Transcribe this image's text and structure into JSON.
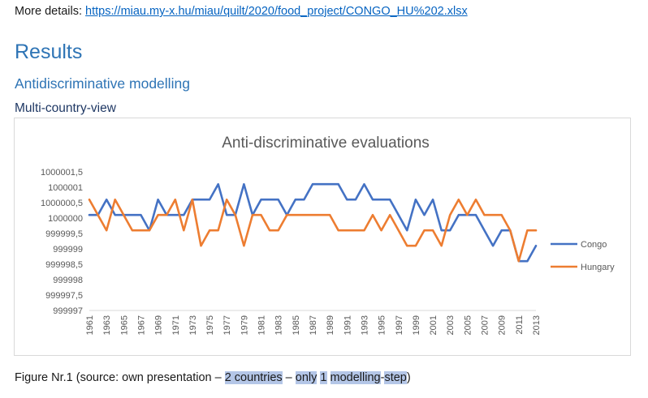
{
  "details": {
    "label": "More details: ",
    "link_text": "https://miau.my-x.hu/miau/quilt/2020/food_project/CONGO_HU%202.xlsx"
  },
  "headings": {
    "results": "Results",
    "modelling": "Antidiscriminative modelling",
    "view": "Multi-country-view"
  },
  "chart_data": {
    "type": "line",
    "title": "Anti-discriminative evaluations",
    "x": [
      1961,
      1962,
      1963,
      1964,
      1965,
      1966,
      1967,
      1968,
      1969,
      1970,
      1971,
      1972,
      1973,
      1974,
      1975,
      1976,
      1977,
      1978,
      1979,
      1980,
      1981,
      1982,
      1983,
      1984,
      1985,
      1986,
      1987,
      1988,
      1989,
      1990,
      1991,
      1992,
      1993,
      1994,
      1995,
      1996,
      1997,
      1998,
      1999,
      2000,
      2001,
      2002,
      2003,
      2004,
      2005,
      2006,
      2007,
      2008,
      2009,
      2010,
      2011,
      2012,
      2013
    ],
    "x_tick_labels": [
      "1961",
      "1963",
      "1965",
      "1967",
      "1969",
      "1971",
      "1973",
      "1975",
      "1977",
      "1979",
      "1981",
      "1983",
      "1985",
      "1987",
      "1989",
      "1991",
      "1993",
      "1995",
      "1997",
      "1999",
      "2001",
      "2003",
      "2005",
      "2007",
      "2009",
      "2011",
      "2013"
    ],
    "y_tick_labels": [
      "1000001,5",
      "1000001",
      "1000000,5",
      "1000000",
      "999999,5",
      "999999",
      "999998,5",
      "999998",
      "999997,5",
      "999997"
    ],
    "ylim": [
      999997,
      1000001.5
    ],
    "ytick_step": 0.5,
    "grid": false,
    "legend_position": "right",
    "series": [
      {
        "name": "Congo",
        "color": "#4472c4",
        "values": [
          1000000.1,
          1000000.1,
          1000000.6,
          1000000.1,
          1000000.1,
          1000000.1,
          1000000.1,
          999999.6,
          1000000.6,
          1000000.1,
          1000000.1,
          1000000.1,
          1000000.6,
          1000000.6,
          1000000.6,
          1000001.1,
          1000000.1,
          1000000.1,
          1000001.1,
          1000000.1,
          1000000.6,
          1000000.6,
          1000000.6,
          1000000.1,
          1000000.6,
          1000000.6,
          1000001.1,
          1000001.1,
          1000001.1,
          1000001.1,
          1000000.6,
          1000000.6,
          1000001.1,
          1000000.6,
          1000000.6,
          1000000.6,
          1000000.1,
          999999.6,
          1000000.6,
          1000000.1,
          1000000.6,
          999999.6,
          999999.6,
          1000000.1,
          1000000.1,
          1000000.1,
          999999.6,
          999999.1,
          999999.6,
          999999.6,
          999998.6,
          999998.6,
          999999.1
        ]
      },
      {
        "name": "Hungary",
        "color": "#ed7d31",
        "values": [
          1000000.6,
          1000000.1,
          999999.6,
          1000000.6,
          1000000.1,
          999999.6,
          999999.6,
          999999.6,
          1000000.1,
          1000000.1,
          1000000.6,
          999999.6,
          1000000.6,
          999999.1,
          999999.6,
          999999.6,
          1000000.6,
          1000000.1,
          999999.1,
          1000000.1,
          1000000.1,
          999999.6,
          999999.6,
          1000000.1,
          1000000.1,
          1000000.1,
          1000000.1,
          1000000.1,
          1000000.1,
          999999.6,
          999999.6,
          999999.6,
          999999.6,
          1000000.1,
          999999.6,
          1000000.1,
          999999.6,
          999999.1,
          999999.1,
          999999.6,
          999999.6,
          999999.1,
          1000000.1,
          1000000.6,
          1000000.1,
          1000000.6,
          1000000.1,
          1000000.1,
          1000000.1,
          999999.6,
          999998.6,
          999999.6,
          999999.6
        ]
      }
    ]
  },
  "caption": {
    "prefix": "Figure Nr.1 (source: own presentation ",
    "dash1": "– ",
    "h1": "2 countries",
    "dash2": " – ",
    "h2": "only",
    "sp1": " ",
    "h3": "1",
    "sp2": " ",
    "h4": "modelling",
    "dash3": "-",
    "h5": "step",
    "suffix": ")"
  }
}
